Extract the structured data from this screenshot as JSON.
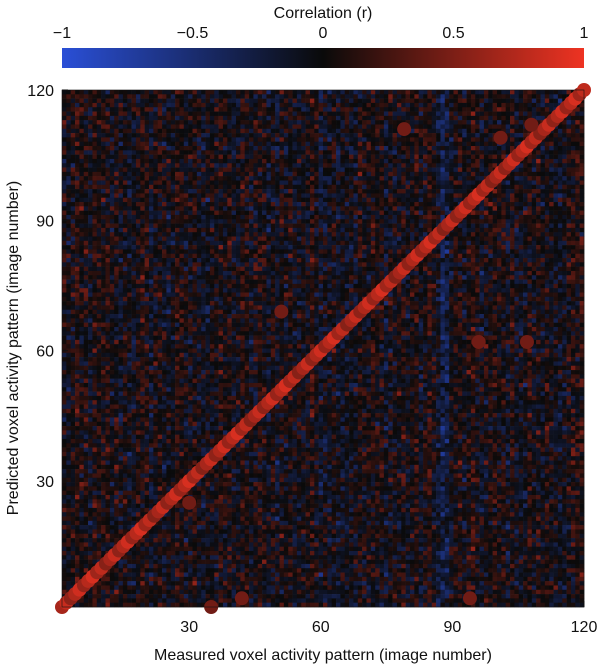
{
  "chart_data": {
    "type": "heatmap",
    "colorbar": {
      "title": "Correlation (r)",
      "range": [
        -1,
        1
      ],
      "tick_labels": [
        "−1",
        "−0.5",
        "0",
        "0.5",
        "1"
      ],
      "tick_values": [
        -1,
        -0.5,
        0,
        0.5,
        1
      ],
      "colors": {
        "low": "#2a4fd6",
        "mid": "#0a0a0a",
        "high": "#ee3322"
      }
    },
    "xlabel": "Measured voxel activity pattern (image number)",
    "ylabel": "Predicted voxel activity pattern (image number)",
    "xlim": [
      1,
      120
    ],
    "ylim": [
      1,
      120
    ],
    "grid_size": 120,
    "x_tick_labels": [
      "30",
      "60",
      "90",
      "120"
    ],
    "x_ticks": [
      30,
      60,
      90,
      120
    ],
    "y_tick_labels": [
      "30",
      "60",
      "90",
      "120"
    ],
    "y_ticks": [
      30,
      60,
      90,
      120
    ],
    "background_correlation": {
      "mean": 0.0,
      "spread": 0.25
    },
    "identified_points_on_diagonal": "all 120 images (x = y)",
    "off_diagonal_points": [
      {
        "x": 35,
        "y": 1
      },
      {
        "x": 42,
        "y": 3
      },
      {
        "x": 30,
        "y": 25
      },
      {
        "x": 51,
        "y": 69
      },
      {
        "x": 79,
        "y": 111
      },
      {
        "x": 96,
        "y": 62
      },
      {
        "x": 107,
        "y": 62
      },
      {
        "x": 94,
        "y": 3
      },
      {
        "x": 101,
        "y": 109
      },
      {
        "x": 108,
        "y": 112
      }
    ],
    "grid": false,
    "legend": "colorbar-top"
  }
}
